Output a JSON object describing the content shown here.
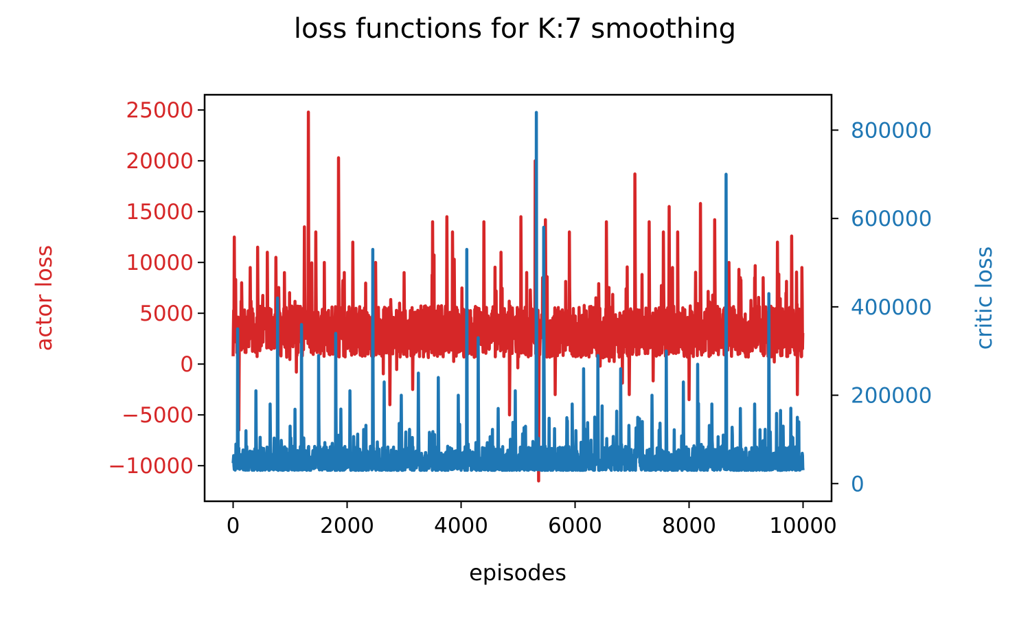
{
  "chart_data": {
    "type": "line",
    "title": "loss functions for K:7 smoothing",
    "xlabel": "episodes",
    "xlim": [
      -500,
      10500
    ],
    "x_ticks": [
      0,
      2000,
      4000,
      6000,
      8000,
      10000
    ],
    "x_tick_labels": [
      "0",
      "2000",
      "4000",
      "6000",
      "8000",
      "10000"
    ],
    "grid": false,
    "legend": "none",
    "axes": {
      "left": {
        "label": "actor loss",
        "color": "#d62728",
        "ylim": [
          -13500,
          26500
        ],
        "ticks": [
          -10000,
          -5000,
          0,
          5000,
          10000,
          15000,
          20000,
          25000
        ],
        "tick_labels": [
          "−10000",
          "−5000",
          "0",
          "5000",
          "10000",
          "15000",
          "20000",
          "25000"
        ]
      },
      "right": {
        "label": "critic loss",
        "color": "#1f77b4",
        "ylim": [
          -40000,
          880000
        ],
        "ticks": [
          0,
          200000,
          400000,
          600000,
          800000
        ],
        "tick_labels": [
          "0",
          "200000",
          "400000",
          "600000",
          "800000"
        ]
      }
    },
    "series": [
      {
        "axis": "left",
        "color": "#d62728",
        "x_range": [
          0,
          10000
        ],
        "baseline": 3200,
        "noise": 2300,
        "spikes": [
          {
            "x": 20,
            "y": 12500
          },
          {
            "x": 100,
            "y": -6500
          },
          {
            "x": 150,
            "y": 8000
          },
          {
            "x": 300,
            "y": 9500
          },
          {
            "x": 430,
            "y": 11500
          },
          {
            "x": 600,
            "y": 11000
          },
          {
            "x": 750,
            "y": 10500
          },
          {
            "x": 900,
            "y": 9000
          },
          {
            "x": 1250,
            "y": 13500
          },
          {
            "x": 1320,
            "y": 24800
          },
          {
            "x": 1450,
            "y": 13000
          },
          {
            "x": 1600,
            "y": 10000
          },
          {
            "x": 1850,
            "y": 20300
          },
          {
            "x": 2100,
            "y": 12000
          },
          {
            "x": 2500,
            "y": 10000
          },
          {
            "x": 2750,
            "y": -4000
          },
          {
            "x": 3000,
            "y": 9000
          },
          {
            "x": 3150,
            "y": -2500
          },
          {
            "x": 3500,
            "y": 14000
          },
          {
            "x": 3750,
            "y": 14500
          },
          {
            "x": 3850,
            "y": 13000
          },
          {
            "x": 4400,
            "y": 14000
          },
          {
            "x": 4700,
            "y": 11000
          },
          {
            "x": 4850,
            "y": -5000
          },
          {
            "x": 5050,
            "y": 14500
          },
          {
            "x": 5300,
            "y": 20000
          },
          {
            "x": 5360,
            "y": -11500
          },
          {
            "x": 5480,
            "y": 14200
          },
          {
            "x": 5650,
            "y": -3000
          },
          {
            "x": 5900,
            "y": 13000
          },
          {
            "x": 6550,
            "y": 14000
          },
          {
            "x": 6950,
            "y": -3000
          },
          {
            "x": 7050,
            "y": 18700
          },
          {
            "x": 7300,
            "y": 14000
          },
          {
            "x": 7550,
            "y": 13000
          },
          {
            "x": 7650,
            "y": 15500
          },
          {
            "x": 7800,
            "y": 13000
          },
          {
            "x": 8000,
            "y": -3500
          },
          {
            "x": 8200,
            "y": 15800
          },
          {
            "x": 8450,
            "y": 14200
          },
          {
            "x": 8700,
            "y": 10000
          },
          {
            "x": 8900,
            "y": 8500
          },
          {
            "x": 9150,
            "y": 8500
          },
          {
            "x": 9300,
            "y": 8500
          },
          {
            "x": 9550,
            "y": 12000
          },
          {
            "x": 9700,
            "y": 7000
          },
          {
            "x": 9800,
            "y": 12600
          },
          {
            "x": 9900,
            "y": -3000
          },
          {
            "x": 9980,
            "y": 9500
          }
        ]
      },
      {
        "axis": "right",
        "color": "#1f77b4",
        "x_range": [
          0,
          10000
        ],
        "baseline": 30000,
        "noise": 25000,
        "spikes": [
          {
            "x": 80,
            "y": 350000
          },
          {
            "x": 400,
            "y": 210000
          },
          {
            "x": 650,
            "y": 180000
          },
          {
            "x": 780,
            "y": 420000
          },
          {
            "x": 1000,
            "y": 130000
          },
          {
            "x": 1200,
            "y": 360000
          },
          {
            "x": 1500,
            "y": 290000
          },
          {
            "x": 1800,
            "y": 340000
          },
          {
            "x": 2050,
            "y": 210000
          },
          {
            "x": 2450,
            "y": 530000
          },
          {
            "x": 2650,
            "y": 230000
          },
          {
            "x": 2950,
            "y": 200000
          },
          {
            "x": 3250,
            "y": 250000
          },
          {
            "x": 3600,
            "y": 240000
          },
          {
            "x": 3950,
            "y": 200000
          },
          {
            "x": 4100,
            "y": 530000
          },
          {
            "x": 4300,
            "y": 330000
          },
          {
            "x": 4650,
            "y": 170000
          },
          {
            "x": 4950,
            "y": 210000
          },
          {
            "x": 5320,
            "y": 840000
          },
          {
            "x": 5450,
            "y": 580000
          },
          {
            "x": 5700,
            "y": 80000
          },
          {
            "x": 5950,
            "y": 180000
          },
          {
            "x": 6150,
            "y": 260000
          },
          {
            "x": 6400,
            "y": 290000
          },
          {
            "x": 6800,
            "y": 260000
          },
          {
            "x": 7100,
            "y": 150000
          },
          {
            "x": 7350,
            "y": 200000
          },
          {
            "x": 7600,
            "y": 300000
          },
          {
            "x": 7900,
            "y": 230000
          },
          {
            "x": 8150,
            "y": 270000
          },
          {
            "x": 8400,
            "y": 180000
          },
          {
            "x": 8650,
            "y": 700000
          },
          {
            "x": 8900,
            "y": 170000
          },
          {
            "x": 9150,
            "y": 180000
          },
          {
            "x": 9400,
            "y": 430000
          },
          {
            "x": 9650,
            "y": 130000
          },
          {
            "x": 9900,
            "y": 150000
          }
        ]
      }
    ]
  }
}
